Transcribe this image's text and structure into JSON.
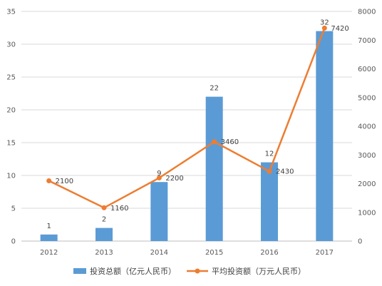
{
  "chart_data": {
    "type": "bar+line",
    "categories": [
      "2012",
      "2013",
      "2014",
      "2015",
      "2016",
      "2017"
    ],
    "series": [
      {
        "name": "投资总额（亿元人民币）",
        "type": "bar",
        "axis": "left",
        "color": "#5b9bd5",
        "values": [
          1,
          2,
          9,
          22,
          12,
          32
        ],
        "labels": [
          "1",
          "2",
          "9",
          "22",
          "12",
          "32"
        ]
      },
      {
        "name": "平均投资额（万元人民币）",
        "type": "line",
        "axis": "right",
        "color": "#ed7d31",
        "values": [
          2100,
          1160,
          2200,
          3460,
          2430,
          7420
        ],
        "labels": [
          "2100",
          "1160",
          "2200",
          "3460",
          "2430",
          "7420"
        ]
      }
    ],
    "y_left": {
      "min": 0,
      "max": 35,
      "step": 5,
      "ticks": [
        "0",
        "5",
        "10",
        "15",
        "20",
        "25",
        "30",
        "35"
      ]
    },
    "y_right": {
      "min": 0,
      "max": 8000,
      "step": 1000,
      "ticks": [
        "0",
        "1000",
        "2000",
        "3000",
        "4000",
        "5000",
        "6000",
        "7000",
        "8000"
      ]
    },
    "grid": true,
    "legend_position": "bottom"
  }
}
